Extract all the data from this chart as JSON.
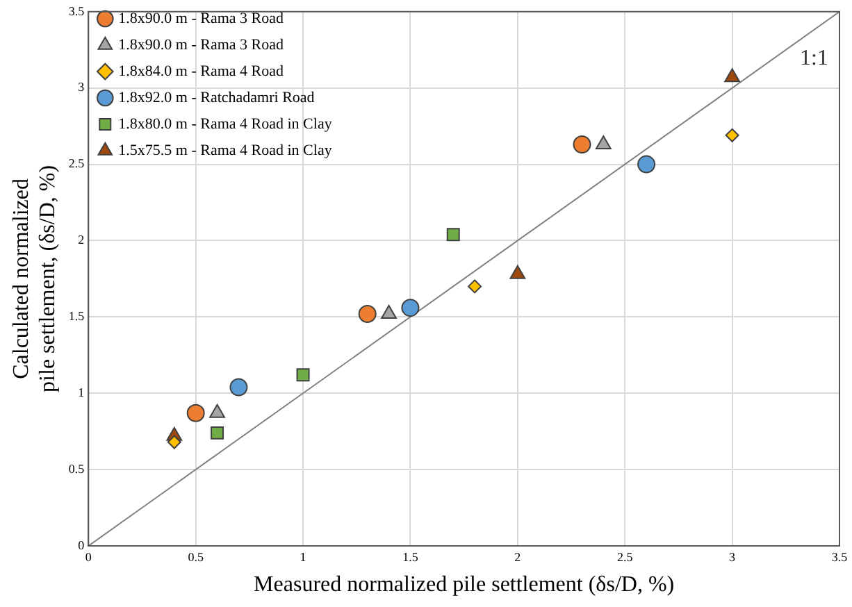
{
  "chart_data": {
    "type": "scatter",
    "xlabel": "Measured normalized pile settlement (δs/D, %)",
    "ylabel": "Calculated normalized\npile settlement, (δs/D, %)",
    "xlim": [
      0,
      3.5
    ],
    "ylim": [
      0,
      3.5
    ],
    "xticks": [
      0,
      0.5,
      1,
      1.5,
      2,
      2.5,
      3,
      3.5
    ],
    "yticks": [
      0,
      0.5,
      1,
      1.5,
      2,
      2.5,
      3,
      3.5
    ],
    "grid": true,
    "legend": "top left",
    "annotations": [
      "1:1"
    ],
    "series": [
      {
        "name": "1.8x90.0 m - Rama 3 Road",
        "color": "#ed7d31",
        "marker": "circle",
        "x": [
          0.5,
          1.3,
          2.3
        ],
        "values": [
          0.87,
          1.52,
          2.63
        ]
      },
      {
        "name": "1.8x90.0 m - Rama 3 Road",
        "color": "#a5a5a5",
        "marker": "triangle",
        "x": [
          0.6,
          1.4,
          2.4
        ],
        "values": [
          0.87,
          1.52,
          2.63
        ]
      },
      {
        "name": "1.8x84.0 m - Rama 4 Road",
        "color": "#ffc000",
        "marker": "diamond",
        "x": [
          0.4,
          1.8,
          3.0
        ],
        "values": [
          0.68,
          1.7,
          2.69
        ]
      },
      {
        "name": "1.8x92.0 m - Ratchadamri Road",
        "color": "#5b9bd5",
        "marker": "circle",
        "x": [
          0.7,
          1.5,
          2.6
        ],
        "values": [
          1.04,
          1.56,
          2.5
        ]
      },
      {
        "name": "1.8x80.0 m - Rama 4 Road in Clay",
        "color": "#70ad47",
        "marker": "square",
        "x": [
          0.6,
          1.0,
          1.7
        ],
        "values": [
          0.74,
          1.12,
          2.04
        ]
      },
      {
        "name": "1.5x75.5 m - Rama 4 Road in Clay",
        "color": "#9e480e",
        "marker": "triangle",
        "x": [
          0.4,
          2.0,
          3.0
        ],
        "values": [
          0.72,
          1.78,
          3.07
        ]
      },
      {
        "type": "line",
        "color": "#808080",
        "marker": "none",
        "x": [
          0,
          3.5
        ],
        "values": [
          0,
          3.5
        ]
      }
    ]
  }
}
